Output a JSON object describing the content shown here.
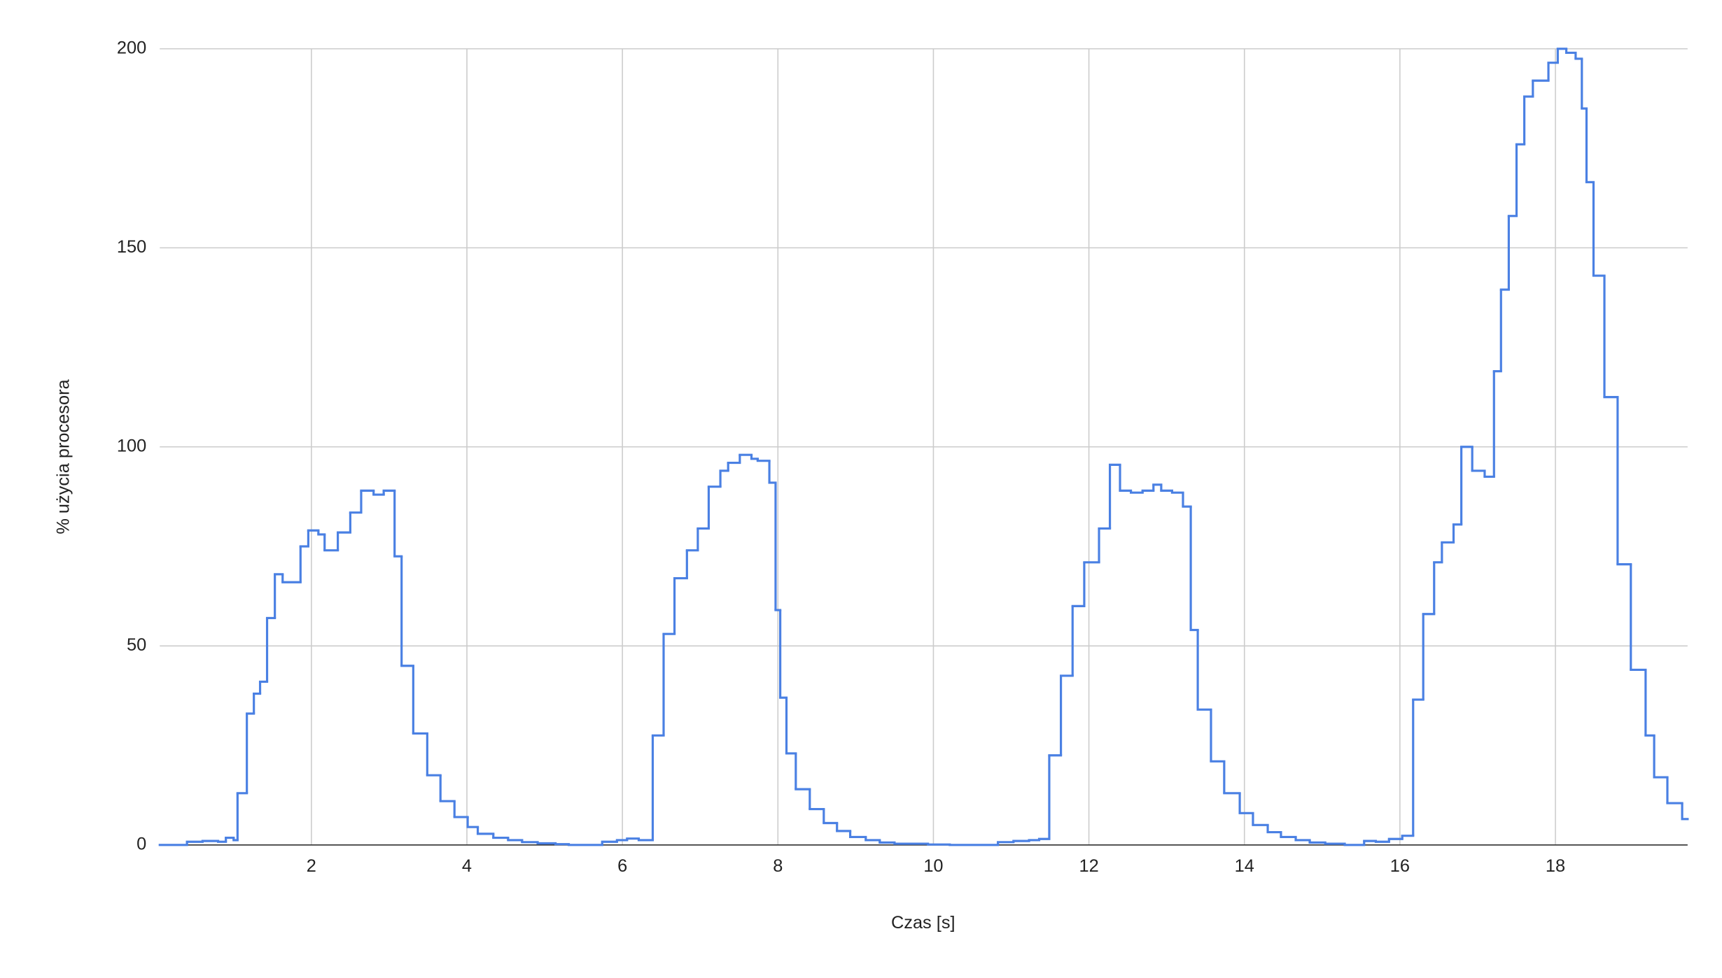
{
  "chart_data": {
    "type": "step",
    "x_label": "Czas [s]",
    "y_label": "% użycia procesora",
    "x": [
      0.05,
      0.4,
      0.6,
      0.8,
      0.9,
      1.0,
      1.05,
      1.17,
      1.26,
      1.34,
      1.43,
      1.53,
      1.63,
      1.86,
      1.96,
      2.09,
      2.17,
      2.34,
      2.5,
      2.64,
      2.8,
      2.93,
      3.07,
      3.16,
      3.31,
      3.49,
      3.66,
      3.84,
      4.01,
      4.14,
      4.34,
      4.53,
      4.71,
      4.91,
      5.14,
      5.31,
      5.74,
      5.93,
      6.06,
      6.21,
      6.39,
      6.53,
      6.67,
      6.83,
      6.97,
      7.11,
      7.26,
      7.36,
      7.51,
      7.66,
      7.74,
      7.89,
      7.97,
      8.03,
      8.11,
      8.23,
      8.41,
      8.59,
      8.76,
      8.93,
      9.13,
      9.31,
      9.5,
      9.93,
      10.21,
      10.83,
      11.03,
      11.23,
      11.36,
      11.49,
      11.64,
      11.79,
      11.94,
      12.13,
      12.27,
      12.4,
      12.54,
      12.69,
      12.83,
      12.93,
      13.07,
      13.21,
      13.31,
      13.4,
      13.57,
      13.74,
      13.94,
      14.11,
      14.3,
      14.47,
      14.66,
      14.84,
      15.04,
      15.29,
      15.54,
      15.69,
      15.86,
      16.03,
      16.17,
      16.3,
      16.44,
      16.54,
      16.69,
      16.79,
      16.93,
      17.09,
      17.21,
      17.3,
      17.4,
      17.5,
      17.6,
      17.71,
      17.91,
      18.03,
      18.14,
      18.26,
      18.34,
      18.4,
      18.49,
      18.63,
      18.8,
      18.97,
      19.16,
      19.27,
      19.44,
      19.63
    ],
    "series": [
      {
        "name": "% użycia procesora",
        "color": "#4a80e3",
        "values": [
          0,
          0.8,
          1,
          0.8,
          1.8,
          1.2,
          13,
          33,
          38,
          41,
          57,
          68,
          66,
          75,
          79,
          78,
          74,
          78.5,
          83.5,
          89,
          88,
          89,
          72.5,
          45,
          28,
          17.5,
          11,
          7,
          4.5,
          2.8,
          1.8,
          1.2,
          0.7,
          0.4,
          0.2,
          0,
          0.8,
          1.2,
          1.6,
          1.2,
          27.5,
          53,
          67,
          74,
          79.5,
          90,
          94,
          96,
          98,
          97,
          96.5,
          91,
          59,
          37,
          23,
          14,
          9,
          5.5,
          3.5,
          2,
          1.2,
          0.6,
          0.3,
          0.1,
          0,
          0.7,
          1,
          1.2,
          1.5,
          22.5,
          42.5,
          60,
          71,
          79.5,
          95.5,
          89,
          88.5,
          89,
          90.5,
          89,
          88.5,
          85,
          54,
          34,
          21,
          13,
          8,
          5,
          3.2,
          2,
          1.2,
          0.6,
          0.3,
          0,
          1,
          0.8,
          1.5,
          2.3,
          36.5,
          58,
          71,
          76,
          80.5,
          100,
          94,
          92.5,
          119,
          139.5,
          158,
          176,
          188,
          192,
          196.5,
          200,
          199,
          197.5,
          185,
          166.5,
          143,
          112.5,
          70.5,
          44,
          27.5,
          17,
          10.5,
          6.5
        ]
      }
    ],
    "xlim": [
      0.05,
      19.7
    ],
    "xticks": [
      2,
      4,
      6,
      8,
      10,
      12,
      14,
      16,
      18
    ],
    "ylim": [
      0,
      200
    ],
    "yticks": [
      0,
      50,
      100,
      150,
      200
    ],
    "grid": true
  }
}
